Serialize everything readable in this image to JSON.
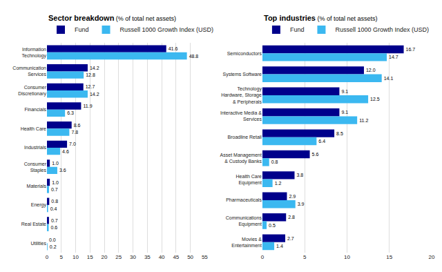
{
  "chart_data": [
    {
      "type": "bar",
      "orientation": "horizontal",
      "title": "Sector breakdown",
      "subtitle": " (% of total net assets)",
      "categories": [
        "Information\nTechnology",
        "Communication\nServices",
        "Consumer\nDiscretionary",
        "Financials",
        "Health Care",
        "Industrials",
        "Consumer\nStaples",
        "Materials",
        "Energy",
        "Real Estate",
        "Utilities"
      ],
      "series": [
        {
          "name": "Fund",
          "color": "#00008B",
          "values": [
            41.6,
            14.2,
            12.7,
            11.9,
            8.6,
            7.0,
            1.0,
            1.0,
            0.8,
            0.7,
            0.0
          ],
          "value_labels": [
            "41.6",
            "14.2",
            "12.7",
            "11.9",
            "8.6",
            "7.0",
            "1.0",
            "1.0",
            "0.8",
            "0.7",
            "0.0"
          ]
        },
        {
          "name": "Russell 1000 Growth Index (USD)",
          "color": "#3BB8F0",
          "values": [
            48.8,
            12.8,
            14.2,
            6.3,
            7.8,
            4.6,
            3.6,
            0.7,
            0.4,
            0.6,
            0.2
          ],
          "value_labels": [
            "48.8",
            "12.8",
            "14.2",
            "6.3",
            "7.8",
            "4.6",
            "3.6",
            "0.7",
            "0.4",
            "0.6",
            "0.2"
          ]
        }
      ],
      "xlim": [
        0,
        55
      ],
      "xticks": [
        0,
        5,
        10,
        15,
        20,
        25,
        30,
        35,
        40,
        45,
        50,
        55
      ],
      "grid": true,
      "legend": "upper left",
      "data_labels": true
    },
    {
      "type": "bar",
      "orientation": "horizontal",
      "title": "Top industries",
      "subtitle": " (% of total net assets)",
      "categories": [
        "Semiconductors",
        "Systems Software",
        "Technology\nHardware, Storage\n& Peripherals",
        "Interactive Media &\nServices",
        "Broadline Retail",
        "Asset Management\n& Custody Banks",
        "Health Care\nEquipment",
        "Pharmaceuticals",
        "Communications\nEquipment",
        "Movies &\nEntertainment"
      ],
      "series": [
        {
          "name": "Fund",
          "color": "#00008B",
          "values": [
            16.7,
            12.0,
            9.1,
            9.1,
            8.5,
            5.6,
            3.8,
            2.9,
            2.8,
            2.7
          ],
          "value_labels": [
            "16.7",
            "12.0",
            "9.1",
            "9.1",
            "8.5",
            "5.6",
            "3.8",
            "2.9",
            "2.8",
            "2.7"
          ]
        },
        {
          "name": "Russell 1000 Growth Index (USD)",
          "color": "#3BB8F0",
          "values": [
            14.7,
            14.1,
            12.5,
            11.2,
            6.4,
            0.8,
            1.2,
            3.9,
            0.5,
            1.4
          ],
          "value_labels": [
            "14.7",
            "14.1",
            "12.5",
            "11.2",
            "6.4",
            "0.8",
            "1.2",
            "3.9",
            "0.5",
            "1.4"
          ]
        }
      ],
      "xlim": [
        0,
        20
      ],
      "xticks": [
        0,
        5,
        10,
        15,
        20
      ],
      "grid": true,
      "legend": "upper left",
      "data_labels": true
    }
  ]
}
